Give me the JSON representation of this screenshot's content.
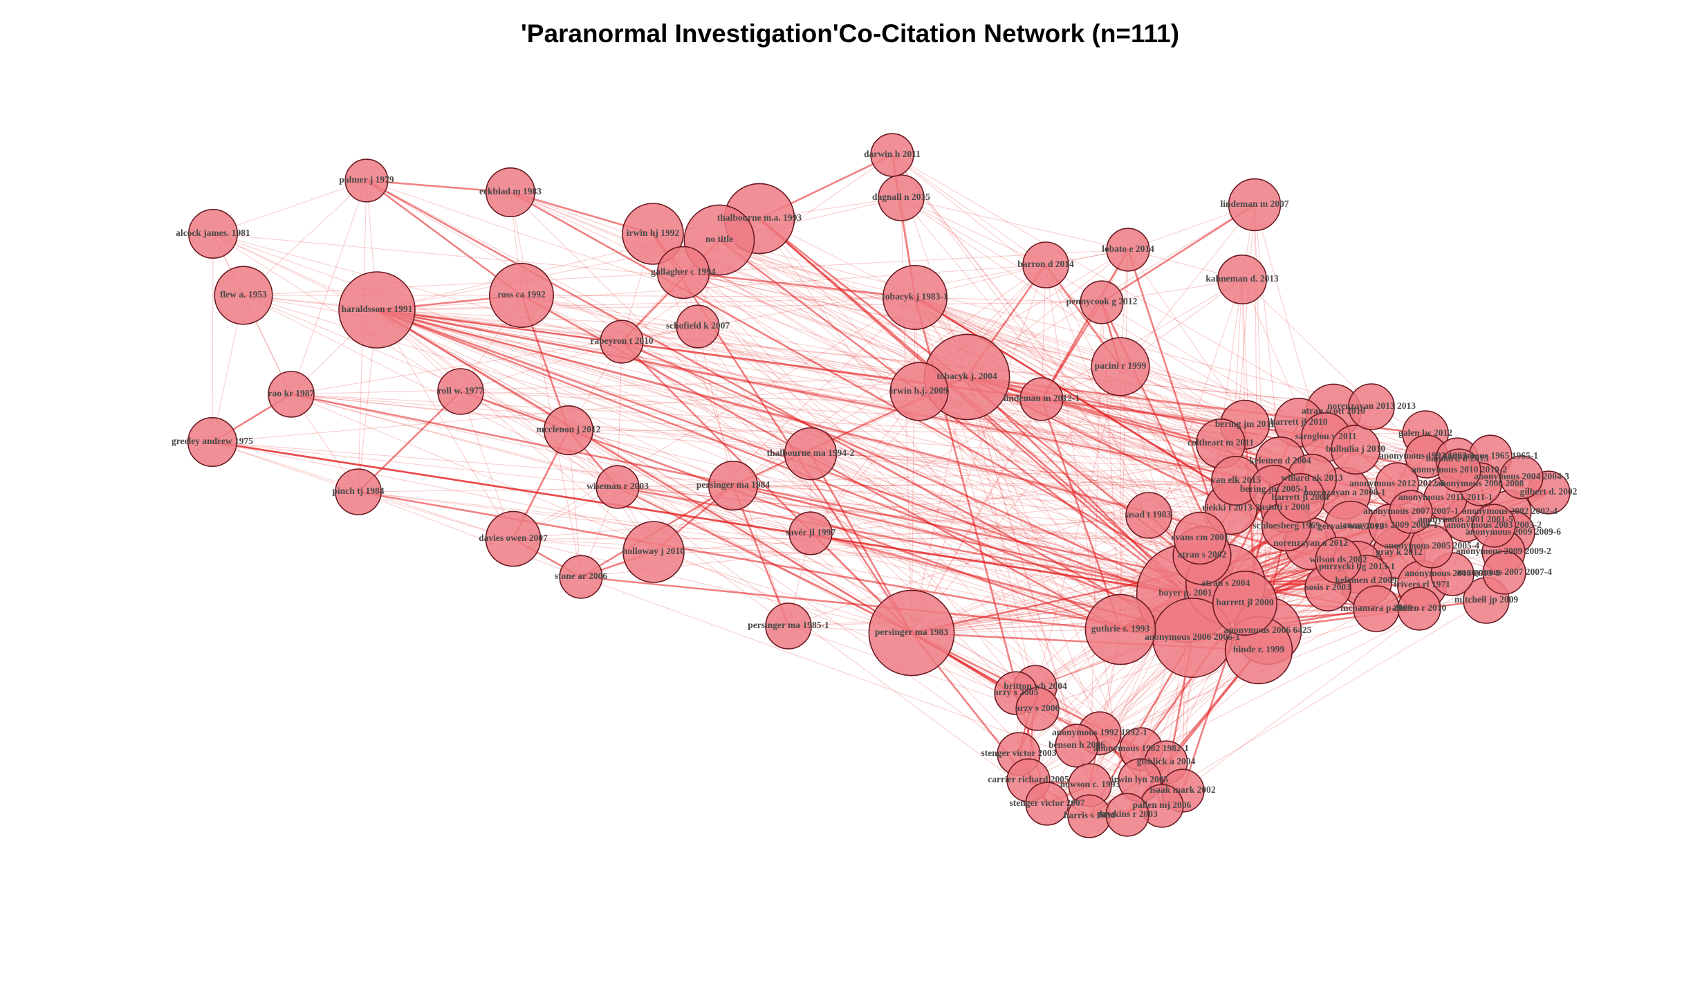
{
  "title": "'Paranormal Investigation'Co-Citation Network (n=111)",
  "colors": {
    "node_fill": "#ef7b84",
    "edge": "#e41a1c",
    "node_border": "#6a1a22"
  },
  "nodes": [
    {
      "id": "darwin h 2011",
      "label": "darwin h 2011",
      "size": 1.4
    },
    {
      "id": "palmer j 1979",
      "label": "palmer j 1979",
      "size": 1.4
    },
    {
      "id": "eckblad m 1983",
      "label": "eckblad m 1983",
      "size": 1.6
    },
    {
      "id": "dagnall n 2015",
      "label": "dagnall n 2015",
      "size": 1.5
    },
    {
      "id": "lindeman m 2007",
      "label": "lindeman m 2007",
      "size": 1.7
    },
    {
      "id": "thalbourne m.a. 1993",
      "label": "thalbourne m.a. 1993",
      "size": 2.3
    },
    {
      "id": "irwin hj 1992",
      "label": "irwin hj 1992",
      "size": 2.0
    },
    {
      "id": "no title",
      "label": "no title",
      "size": 2.3
    },
    {
      "id": "alcock james. 1981",
      "label": "alcock james. 1981",
      "size": 1.6
    },
    {
      "id": "lobato e 2014",
      "label": "lobato e 2014",
      "size": 1.4
    },
    {
      "id": "gallagher c 1994",
      "label": "gallagher c 1994",
      "size": 1.7
    },
    {
      "id": "barron d 2014",
      "label": "barron d 2014",
      "size": 1.5
    },
    {
      "id": "kahneman d. 2013",
      "label": "kahneman d. 2013",
      "size": 1.6
    },
    {
      "id": "flew a. 1953",
      "label": "flew a. 1953",
      "size": 1.9
    },
    {
      "id": "haraldsson e 1991",
      "label": "haraldsson e 1991",
      "size": 2.5
    },
    {
      "id": "ross ca 1992",
      "label": "ross ca 1992",
      "size": 2.1
    },
    {
      "id": "tobacyk j 1983-1",
      "label": "tobacyk j 1983-1",
      "size": 2.1
    },
    {
      "id": "pennycook g 2012",
      "label": "pennycook g 2012",
      "size": 1.4
    },
    {
      "id": "schofield k 2007",
      "label": "schofield k 2007",
      "size": 1.4
    },
    {
      "id": "rabeyron t 2010",
      "label": "rabeyron t 2010",
      "size": 1.4
    },
    {
      "id": "pacini r 1999",
      "label": "pacini r 1999",
      "size": 1.9
    },
    {
      "id": "tobacyk j. 2004",
      "label": "tobacyk j. 2004",
      "size": 2.8
    },
    {
      "id": "rao kr 1987",
      "label": "rao kr 1987",
      "size": 1.5
    },
    {
      "id": "roll w. 1977",
      "label": "roll w. 1977",
      "size": 1.5
    },
    {
      "id": "irwin h.j. 2009",
      "label": "irwin h.j. 2009",
      "size": 1.9
    },
    {
      "id": "lindeman m 2012-1",
      "label": "lindeman m 2012-1",
      "size": 1.4
    },
    {
      "id": "norenzayan 2013 2013",
      "label": "norenzayan 2013 2013",
      "size": 1.5
    },
    {
      "id": "atran scott 2010",
      "label": "atran scott 2010",
      "size": 1.8
    },
    {
      "id": "greeley andrew 1975",
      "label": "greeley andrew 1975",
      "size": 1.6
    },
    {
      "id": "mcclenon j 2012",
      "label": "mcclenon j 2012",
      "size": 1.6
    },
    {
      "id": "bering jm 2011",
      "label": "bering jm 2011",
      "size": 1.6
    },
    {
      "id": "barrett jl 2010",
      "label": "barrett jl 2010",
      "size": 1.6
    },
    {
      "id": "galen lw 2012",
      "label": "galen lw 2012",
      "size": 1.5
    },
    {
      "id": "coltheart m 2011",
      "label": "coltheart m 2011",
      "size": 1.6
    },
    {
      "id": "saroglou v 2011",
      "label": "saroglou v 2011",
      "size": 1.6
    },
    {
      "id": "thalbourne ma 1994-2",
      "label": "thalbourne ma 1994-2",
      "size": 1.7
    },
    {
      "id": "kelemen d 2004",
      "label": "kelemen d 2004",
      "size": 1.6
    },
    {
      "id": "anonymous 1993 1993-1",
      "label": "anonymous 1993 1993-1",
      "size": 1.4
    },
    {
      "id": "bannard d 2015",
      "label": "bannard d 2015",
      "size": 1.4
    },
    {
      "id": "anonymous 1965 1965-1",
      "label": "anonymous 1965 1965-1",
      "size": 1.4
    },
    {
      "id": "willard ak 2013",
      "label": "willard ak 2013",
      "size": 1.6
    },
    {
      "id": "wiseman r 2003",
      "label": "wiseman r 2003",
      "size": 1.4
    },
    {
      "id": "pinch tj 1984",
      "label": "pinch tj 1984",
      "size": 1.5
    },
    {
      "id": "persinger ma 1984",
      "label": "persinger ma 1984",
      "size": 1.6
    },
    {
      "id": "van elk 2015",
      "label": "van elk 2015",
      "size": 1.6
    },
    {
      "id": "bering jm 2005-1",
      "label": "bering jm 2005-1",
      "size": 1.6
    },
    {
      "id": "gilbert d. 2002",
      "label": "gilbert d. 2002",
      "size": 1.4
    },
    {
      "id": "riekki t 2013-2",
      "label": "riekki t 2013-2",
      "size": 1.7
    },
    {
      "id": "norenzayan a 2008-1",
      "label": "norenzayan a 2008-1",
      "size": 1.7
    },
    {
      "id": "astuti r 2008",
      "label": "astuti r 2008",
      "size": 1.6
    },
    {
      "id": "anonymous 2002 2002-4",
      "label": "anonymous 2002 2002-4",
      "size": 1.4
    },
    {
      "id": "asad t 1983",
      "label": "asad t 1983",
      "size": 1.5
    },
    {
      "id": "schloesberg 1969",
      "label": "schloesberg 1969",
      "size": 1.6
    },
    {
      "id": "anonymous 2001 2001-5",
      "label": "anonymous 2001 2001-5",
      "size": 1.4
    },
    {
      "id": "savér jl 1997",
      "label": "savér jl 1997",
      "size": 1.4
    },
    {
      "id": "anonymous 2009 2009-6",
      "label": "anonymous 2009 2009-6",
      "size": 1.4
    },
    {
      "id": "gervais wm 2012",
      "label": "gervais wm 2012",
      "size": 1.7
    },
    {
      "id": "evans cm 2001",
      "label": "evans cm 2001",
      "size": 1.7
    },
    {
      "id": "norenzayan a 2012",
      "label": "norenzayan a 2012",
      "size": 1.7
    },
    {
      "id": "davies owen 2007",
      "label": "davies owen 2007",
      "size": 1.8
    },
    {
      "id": "holloway j 2010",
      "label": "holloway j 2010",
      "size": 2.0
    },
    {
      "id": "anonymous 2009 2009-2",
      "label": "anonymous 2009 2009-2",
      "size": 1.4
    },
    {
      "id": "atran s 2002",
      "label": "atran s 2002",
      "size": 1.9
    },
    {
      "id": "gray k 2012",
      "label": "gray k 2012",
      "size": 1.7
    },
    {
      "id": "stone ar 2006",
      "label": "stone ar 2006",
      "size": 1.4
    },
    {
      "id": "purzycki bg 2013-1",
      "label": "purzycki bg 2013-1",
      "size": 1.7
    },
    {
      "id": "anonymous 2007 2007-4",
      "label": "anonymous 2007 2007-4",
      "size": 1.4
    },
    {
      "id": "kelemen d 2009",
      "label": "kelemen d 2009",
      "size": 1.7
    },
    {
      "id": "atran s 2004",
      "label": "atran s 2004",
      "size": 2.6
    },
    {
      "id": "trivers rl 1971",
      "label": "trivers rl 1971",
      "size": 1.6
    },
    {
      "id": "boyer p. 2001",
      "label": "boyer p. 2001",
      "size": 3.2
    },
    {
      "id": "mitchell jp 2009",
      "label": "mitchell jp 2009",
      "size": 1.5
    },
    {
      "id": "barrett jl 2000",
      "label": "barrett jl 2000",
      "size": 2.1
    },
    {
      "id": "allmen r 2010",
      "label": "allmen r 2010",
      "size": 1.4
    },
    {
      "id": "persinger ma 1985-1",
      "label": "persinger ma 1985-1",
      "size": 1.5
    },
    {
      "id": "persinger ma 1983",
      "label": "persinger ma 1983",
      "size": 2.8
    },
    {
      "id": "guthrie s. 1993",
      "label": "guthrie s. 1993",
      "size": 2.3
    },
    {
      "id": "anonymous 2006 6425",
      "label": "anonymous 2006 6425",
      "size": 2.2
    },
    {
      "id": "anonymous 2006 2006-1",
      "label": "anonymous 2006 2006-1",
      "size": 2.6
    },
    {
      "id": "hinde r. 1999",
      "label": "hinde r. 1999",
      "size": 2.2
    },
    {
      "id": "britton wb 2004",
      "label": "britton wb 2004",
      "size": 1.4
    },
    {
      "id": "arzy s 2005",
      "label": "arzy s 2005",
      "size": 1.4
    },
    {
      "id": "arzy s 2006",
      "label": "arzy s 2006",
      "size": 1.4
    },
    {
      "id": "anonymous 1992 1992-1",
      "label": "anonymous 1992 1992-1",
      "size": 1.4
    },
    {
      "id": "benson h 2006",
      "label": "benson h 2006",
      "size": 1.4
    },
    {
      "id": "anonymous 1982 1982-1",
      "label": "anonymous 1982 1982-1",
      "size": 1.4
    },
    {
      "id": "stenger victor 2003",
      "label": "stenger victor 2003",
      "size": 1.4
    },
    {
      "id": "gishlick a 2004",
      "label": "gishlick a 2004",
      "size": 1.4
    },
    {
      "id": "carrier richard 2005",
      "label": "carrier richard 2005",
      "size": 1.4
    },
    {
      "id": "irwin lyn 2005",
      "label": "irwin lyn 2005",
      "size": 1.4
    },
    {
      "id": "howson c. 1993",
      "label": "howson c. 1993",
      "size": 1.4
    },
    {
      "id": "isaak mark 2002",
      "label": "isaak mark 2002",
      "size": 1.4
    },
    {
      "id": "stenger victor 2007",
      "label": "stenger victor 2007",
      "size": 1.4
    },
    {
      "id": "pallen mj 2006",
      "label": "pallen mj 2006",
      "size": 1.4
    },
    {
      "id": "harris s 2004",
      "label": "harris s 2004",
      "size": 1.4
    },
    {
      "id": "dawkins r 2003",
      "label": "dawkins r 2003",
      "size": 1.4
    },
    {
      "id": "anonymous 2012 2012-6",
      "label": "anonymous 2012 2012-6",
      "size": 1.4
    },
    {
      "id": "anonymous 2013 2013-5",
      "label": "anonymous 2013 2013-5",
      "size": 1.4
    },
    {
      "id": "bulbulia j 2010",
      "label": "bulbulia j 2010",
      "size": 1.6
    },
    {
      "id": "anonymous 2009 2009-1",
      "label": "anonymous 2009 2009-1",
      "size": 1.4
    },
    {
      "id": "anonymous 2011 2011-1",
      "label": "anonymous 2011 2011-1",
      "size": 1.4
    },
    {
      "id": "anonymous 2008 2008",
      "label": "anonymous 2008 2008",
      "size": 1.4
    },
    {
      "id": "anonymous 2005 2005-4",
      "label": "anonymous 2005 2005-4",
      "size": 1.4
    },
    {
      "id": "sosis r 2003",
      "label": "sosis r 2003",
      "size": 1.5
    },
    {
      "id": "anonymous 2007 2007-1",
      "label": "anonymous 2007 2007-1",
      "size": 1.4
    },
    {
      "id": "barrett jl 2004",
      "label": "barrett jl 2004",
      "size": 1.6
    },
    {
      "id": "mcnamara p 2009",
      "label": "mcnamara p 2009",
      "size": 1.5
    },
    {
      "id": "anonymous 2010 2010-2",
      "label": "anonymous 2010 2010-2",
      "size": 1.4
    },
    {
      "id": "anonymous 2004 2004-3",
      "label": "anonymous 2004 2004-3",
      "size": 1.4
    },
    {
      "id": "anonymous 2003 2003-2",
      "label": "anonymous 2003 2003-2",
      "size": 1.4
    },
    {
      "id": "wilson ds 2002",
      "label": "wilson ds 2002",
      "size": 1.5
    }
  ]
}
